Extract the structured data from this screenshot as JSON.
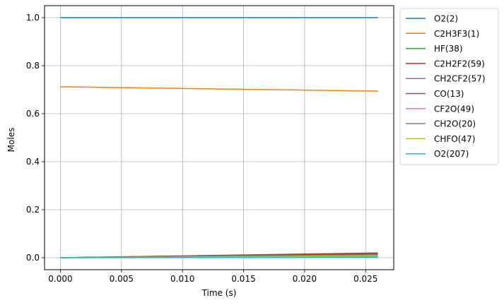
{
  "chart_data": {
    "type": "line",
    "xlabel": "Time  (s)",
    "ylabel": "Moles",
    "xlim": [
      -0.0013,
      0.0273
    ],
    "ylim": [
      -0.05,
      1.05
    ],
    "xticks": [
      0.0,
      0.005,
      0.01,
      0.015,
      0.02,
      0.025
    ],
    "xtick_labels": [
      "0.000",
      "0.005",
      "0.010",
      "0.015",
      "0.020",
      "0.025"
    ],
    "yticks": [
      0.0,
      0.2,
      0.4,
      0.6,
      0.8,
      1.0
    ],
    "ytick_labels": [
      "0.0",
      "0.2",
      "0.4",
      "0.6",
      "0.8",
      "1.0"
    ],
    "grid": true,
    "legend_position": "outside-right-top",
    "x": [
      0.0,
      0.026
    ],
    "series": [
      {
        "name": "O2(2)",
        "color": "#1f77b4",
        "values": [
          1.0,
          1.0
        ]
      },
      {
        "name": "C2H3F3(1)",
        "color": "#ff7f0e",
        "values": [
          0.712,
          0.694
        ]
      },
      {
        "name": "HF(38)",
        "color": "#2ca02c",
        "values": [
          0.0,
          0.018
        ]
      },
      {
        "name": "C2H2F2(59)",
        "color": "#d62728",
        "values": [
          0.0,
          0.016
        ]
      },
      {
        "name": "CH2CF2(57)",
        "color": "#9467bd",
        "values": [
          0.0,
          0.004
        ]
      },
      {
        "name": "CO(13)",
        "color": "#8c564b",
        "values": [
          0.0,
          0.02
        ]
      },
      {
        "name": "CF2O(49)",
        "color": "#e377c2",
        "values": [
          0.0,
          0.006
        ]
      },
      {
        "name": "CH2O(20)",
        "color": "#7f7f7f",
        "values": [
          0.0,
          0.012
        ]
      },
      {
        "name": "CHFO(47)",
        "color": "#bcbd22",
        "values": [
          0.0,
          0.008
        ]
      },
      {
        "name": "O2(207)",
        "color": "#17becf",
        "values": [
          0.0,
          0.001
        ]
      }
    ]
  }
}
